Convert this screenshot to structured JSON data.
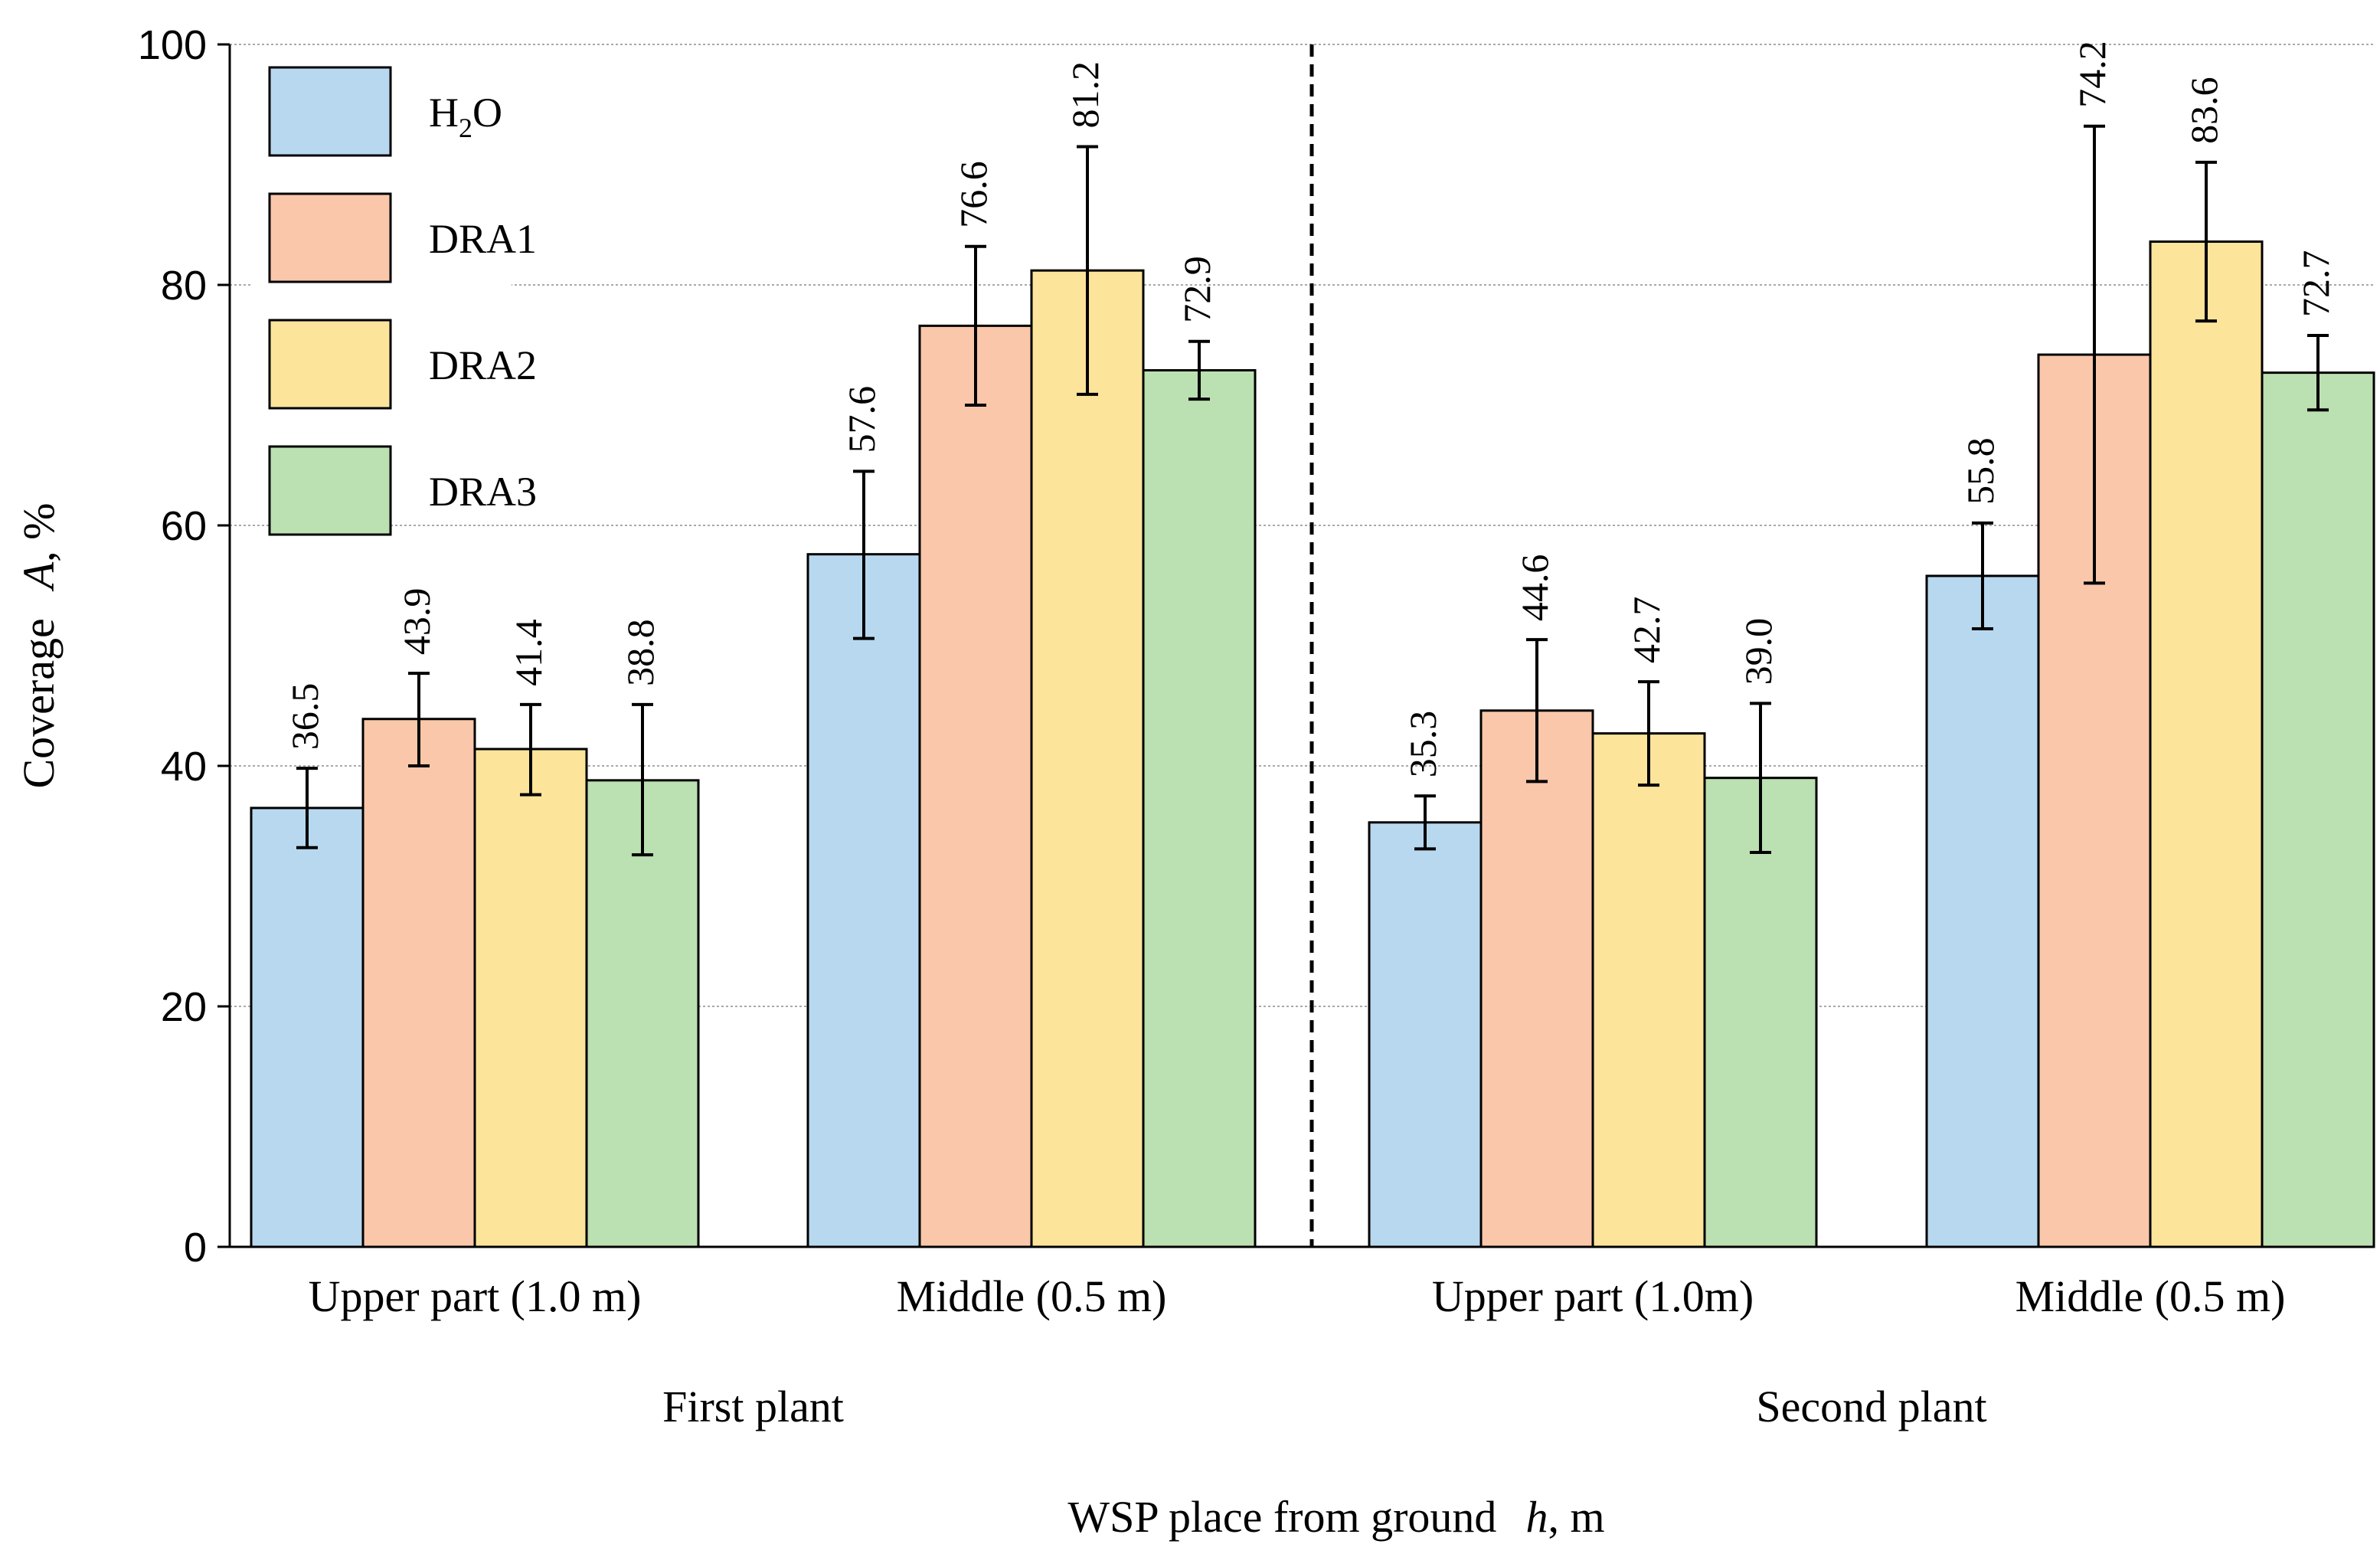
{
  "chart_data": {
    "type": "bar",
    "ylabel_prefix": "Coverage",
    "ylabel_var": "A",
    "ylabel_suffix": ", %",
    "xlabel_prefix": "WSP place from ground",
    "xlabel_var": "h",
    "xlabel_suffix": ", m",
    "ylim": [
      0,
      100
    ],
    "yticks": [
      0,
      20,
      40,
      60,
      80,
      100
    ],
    "grid": true,
    "legend_position": "top-left",
    "series": [
      {
        "name": "H2O",
        "color": "#b8d8ef"
      },
      {
        "name": "DRA1",
        "color": "#fac7aa"
      },
      {
        "name": "DRA2",
        "color": "#fde49b"
      },
      {
        "name": "DRA3",
        "color": "#bbe0b1"
      }
    ],
    "legend_labels": [
      {
        "main": "H",
        "sub": "2",
        "tail": "O"
      },
      {
        "main": "DRA1",
        "sub": "",
        "tail": ""
      },
      {
        "main": "DRA2",
        "sub": "",
        "tail": ""
      },
      {
        "main": "DRA3",
        "sub": "",
        "tail": ""
      }
    ],
    "plants": [
      {
        "label": "First plant",
        "groups": [
          {
            "label": "Upper part (1.0 m)",
            "values": [
              36.5,
              43.9,
              41.4,
              38.8
            ],
            "err_low": [
              33.2,
              40.0,
              37.6,
              32.6
            ],
            "err_high": [
              39.8,
              47.7,
              45.1,
              45.1
            ],
            "value_labels": [
              "36.5",
              "43.9",
              "41.4",
              "38.8"
            ]
          },
          {
            "label": "Middle (0.5 m)",
            "values": [
              57.6,
              76.6,
              81.2,
              72.9
            ],
            "err_low": [
              50.6,
              70.0,
              70.9,
              70.5
            ],
            "err_high": [
              64.5,
              83.2,
              91.5,
              75.3
            ],
            "value_labels": [
              "57.6",
              "76.6",
              "81.2",
              "72.9"
            ]
          }
        ]
      },
      {
        "label": "Second plant",
        "groups": [
          {
            "label": "Upper part (1.0m)",
            "values": [
              35.3,
              44.6,
              42.7,
              39.0
            ],
            "err_low": [
              33.1,
              38.7,
              38.4,
              32.8
            ],
            "err_high": [
              37.5,
              50.5,
              47.0,
              45.2
            ],
            "value_labels": [
              "35.3",
              "44.6",
              "42.7",
              "39.0"
            ]
          },
          {
            "label": "Middle (0.5 m)",
            "values": [
              55.8,
              74.2,
              83.6,
              72.7
            ],
            "err_low": [
              51.4,
              55.2,
              77.0,
              69.6
            ],
            "err_high": [
              60.2,
              93.2,
              90.2,
              75.8
            ],
            "value_labels": [
              "55.8",
              "74.2",
              "83.6",
              "72.7"
            ]
          }
        ]
      }
    ]
  }
}
